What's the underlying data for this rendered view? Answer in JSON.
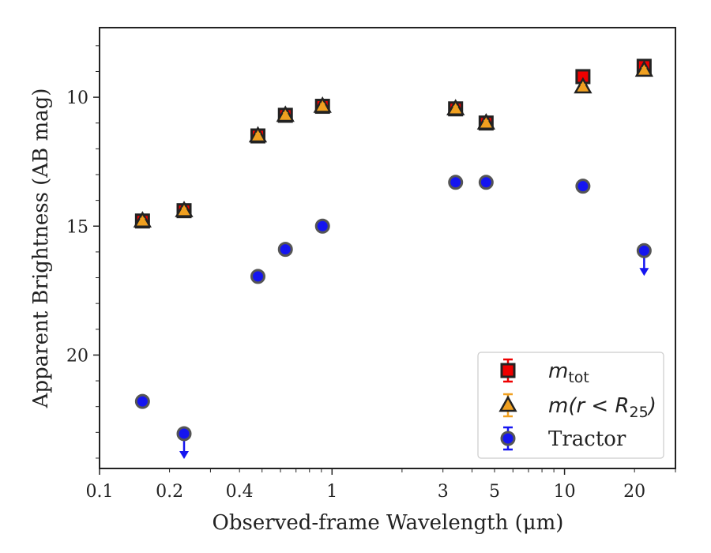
{
  "chart_data": {
    "type": "scatter",
    "xlabel": "Observed-frame Wavelength (μm)",
    "ylabel": "Apparent Brightness (AB mag)",
    "x_scale": "log",
    "xlim": [
      0.1,
      30
    ],
    "ylim": [
      24.4,
      7.3
    ],
    "y_inverted": true,
    "x_ticks": [
      0.1,
      0.2,
      0.4,
      1,
      3,
      5,
      10,
      20
    ],
    "x_tick_labels": [
      "0.1",
      "0.2",
      "0.4",
      "1",
      "3",
      "5",
      "10",
      "20"
    ],
    "y_ticks": [
      10,
      15,
      20
    ],
    "y_tick_labels": [
      "10",
      "15",
      "20"
    ],
    "grid": false,
    "legend_placement": "lower right",
    "series": [
      {
        "name": "m_tot",
        "marker": "square",
        "color": "#ee0000",
        "x": [
          0.153,
          0.231,
          0.48,
          0.63,
          0.91,
          3.4,
          4.6,
          12.0,
          22.0
        ],
        "y": [
          14.8,
          14.4,
          11.5,
          10.7,
          10.35,
          10.45,
          11.0,
          9.2,
          8.8
        ]
      },
      {
        "name": "m(r < R25)",
        "marker": "triangle",
        "color": "#f0a020",
        "x": [
          0.153,
          0.231,
          0.48,
          0.63,
          0.91,
          3.4,
          4.6,
          12.0,
          22.0
        ],
        "y": [
          14.8,
          14.4,
          11.5,
          10.7,
          10.35,
          10.45,
          11.0,
          9.6,
          8.95
        ]
      },
      {
        "name": "Tractor",
        "marker": "circle",
        "color": "#1515f0",
        "x": [
          0.153,
          0.231,
          0.48,
          0.63,
          0.91,
          3.4,
          4.6,
          12.0,
          22.0
        ],
        "y": [
          21.8,
          23.05,
          16.95,
          15.9,
          15.0,
          13.3,
          13.3,
          13.45,
          15.95
        ],
        "upper_limits": [
          false,
          true,
          false,
          false,
          false,
          false,
          false,
          false,
          true
        ]
      }
    ],
    "legend": {
      "entries": [
        {
          "main": "m",
          "sub": "tot",
          "tail": ""
        },
        {
          "main": "m(r < R",
          "sub": "25",
          "tail": ")"
        },
        {
          "main": "Tractor",
          "sub": "",
          "tail": ""
        }
      ]
    }
  }
}
